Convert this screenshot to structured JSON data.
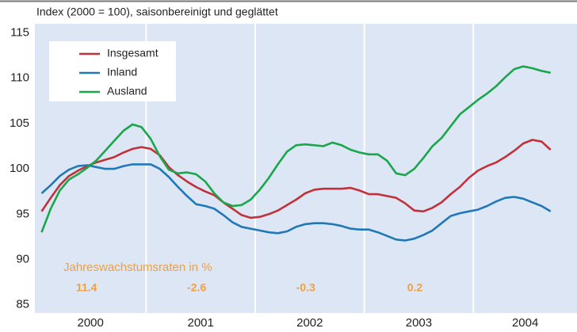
{
  "chart_data": {
    "type": "line",
    "subtitle": "Index (2000 = 100), saisonbereinigt und geglättet",
    "x": [
      2000.042,
      2000.125,
      2000.208,
      2000.292,
      2000.375,
      2000.458,
      2000.542,
      2000.625,
      2000.708,
      2000.792,
      2000.875,
      2000.958,
      2001.042,
      2001.125,
      2001.208,
      2001.292,
      2001.375,
      2001.458,
      2001.542,
      2001.625,
      2001.708,
      2001.792,
      2001.875,
      2001.958,
      2002.042,
      2002.125,
      2002.208,
      2002.292,
      2002.375,
      2002.458,
      2002.542,
      2002.625,
      2002.708,
      2002.792,
      2002.875,
      2002.958,
      2003.042,
      2003.125,
      2003.208,
      2003.292,
      2003.375,
      2003.458,
      2003.542,
      2003.625,
      2003.708,
      2003.792,
      2003.875,
      2003.958,
      2004.042,
      2004.125,
      2004.208,
      2004.292,
      2004.375,
      2004.458,
      2004.542,
      2004.625,
      2004.708
    ],
    "series": [
      {
        "name": "Insgesamt",
        "color": "#c0313a",
        "values": [
          95.3,
          96.8,
          98.2,
          99.2,
          99.8,
          100.3,
          100.7,
          101.0,
          101.3,
          101.8,
          102.2,
          102.4,
          102.2,
          101.5,
          100.2,
          99.3,
          98.6,
          98.0,
          97.5,
          97.1,
          96.3,
          95.6,
          94.9,
          94.6,
          94.7,
          95.0,
          95.4,
          96.0,
          96.6,
          97.3,
          97.7,
          97.8,
          97.8,
          97.8,
          97.9,
          97.6,
          97.2,
          97.2,
          97.0,
          96.8,
          96.2,
          95.4,
          95.3,
          95.7,
          96.3,
          97.2,
          98.0,
          99.0,
          99.8,
          100.3,
          100.7,
          101.3,
          102.0,
          102.8,
          103.2,
          103.0,
          102.1
        ]
      },
      {
        "name": "Inland",
        "color": "#1f78b8",
        "values": [
          97.3,
          98.2,
          99.2,
          99.9,
          100.3,
          100.4,
          100.2,
          100.0,
          100.0,
          100.3,
          100.5,
          100.5,
          100.5,
          100.0,
          99.1,
          98.0,
          97.0,
          96.1,
          95.9,
          95.6,
          94.9,
          94.1,
          93.6,
          93.4,
          93.2,
          93.0,
          92.9,
          93.1,
          93.6,
          93.9,
          94.0,
          94.0,
          93.9,
          93.7,
          93.4,
          93.3,
          93.3,
          93.0,
          92.6,
          92.2,
          92.1,
          92.3,
          92.7,
          93.2,
          94.0,
          94.8,
          95.1,
          95.3,
          95.5,
          95.9,
          96.4,
          96.8,
          96.9,
          96.7,
          96.3,
          95.9,
          95.3
        ]
      },
      {
        "name": "Ausland",
        "color": "#1aa64a",
        "values": [
          93.0,
          95.6,
          97.6,
          98.8,
          99.4,
          100.1,
          100.9,
          102.0,
          103.1,
          104.2,
          104.9,
          104.6,
          103.3,
          101.4,
          99.9,
          99.5,
          99.6,
          99.4,
          98.6,
          97.3,
          96.3,
          95.9,
          96.0,
          96.6,
          97.7,
          99.0,
          100.5,
          101.9,
          102.6,
          102.7,
          102.6,
          102.5,
          102.9,
          102.6,
          102.1,
          101.8,
          101.6,
          101.6,
          100.9,
          99.5,
          99.3,
          100.0,
          101.2,
          102.5,
          103.4,
          104.7,
          106.0,
          106.8,
          107.6,
          108.3,
          109.1,
          110.1,
          111.0,
          111.3,
          111.1,
          110.8,
          110.6
        ]
      }
    ],
    "xlim": [
      1999.98,
      2004.95
    ],
    "xticks": [
      2001,
      2002,
      2003,
      2004
    ],
    "year_labels": [
      "2000",
      "2001",
      "2002",
      "2003",
      "2004"
    ],
    "ylim": [
      84.1,
      116
    ],
    "yticks": [
      85,
      90,
      95,
      100,
      105,
      110,
      115
    ],
    "background": "#dde6f4",
    "growth_rates": {
      "label": "Jahreswachstumsraten in %",
      "color": "#f0a040",
      "values": [
        11.4,
        -2.6,
        -0.3,
        0.2
      ]
    }
  }
}
